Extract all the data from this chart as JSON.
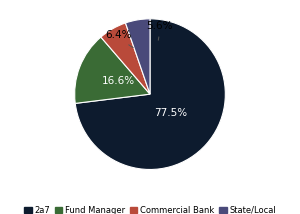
{
  "labels": [
    "2a7",
    "Fund Manager",
    "Commercial Bank",
    "State/Local"
  ],
  "values": [
    77.5,
    16.6,
    6.4,
    5.6
  ],
  "colors": [
    "#0d1b2e",
    "#3a6b35",
    "#b94a3a",
    "#4a4a7a"
  ],
  "pct_labels": [
    "77.5%",
    "16.6%",
    "6.4%",
    "5.6%"
  ],
  "startangle": 90,
  "legend_fontsize": 6.0,
  "pct_fontsize": 7.5,
  "bg_color": "#ffffff"
}
